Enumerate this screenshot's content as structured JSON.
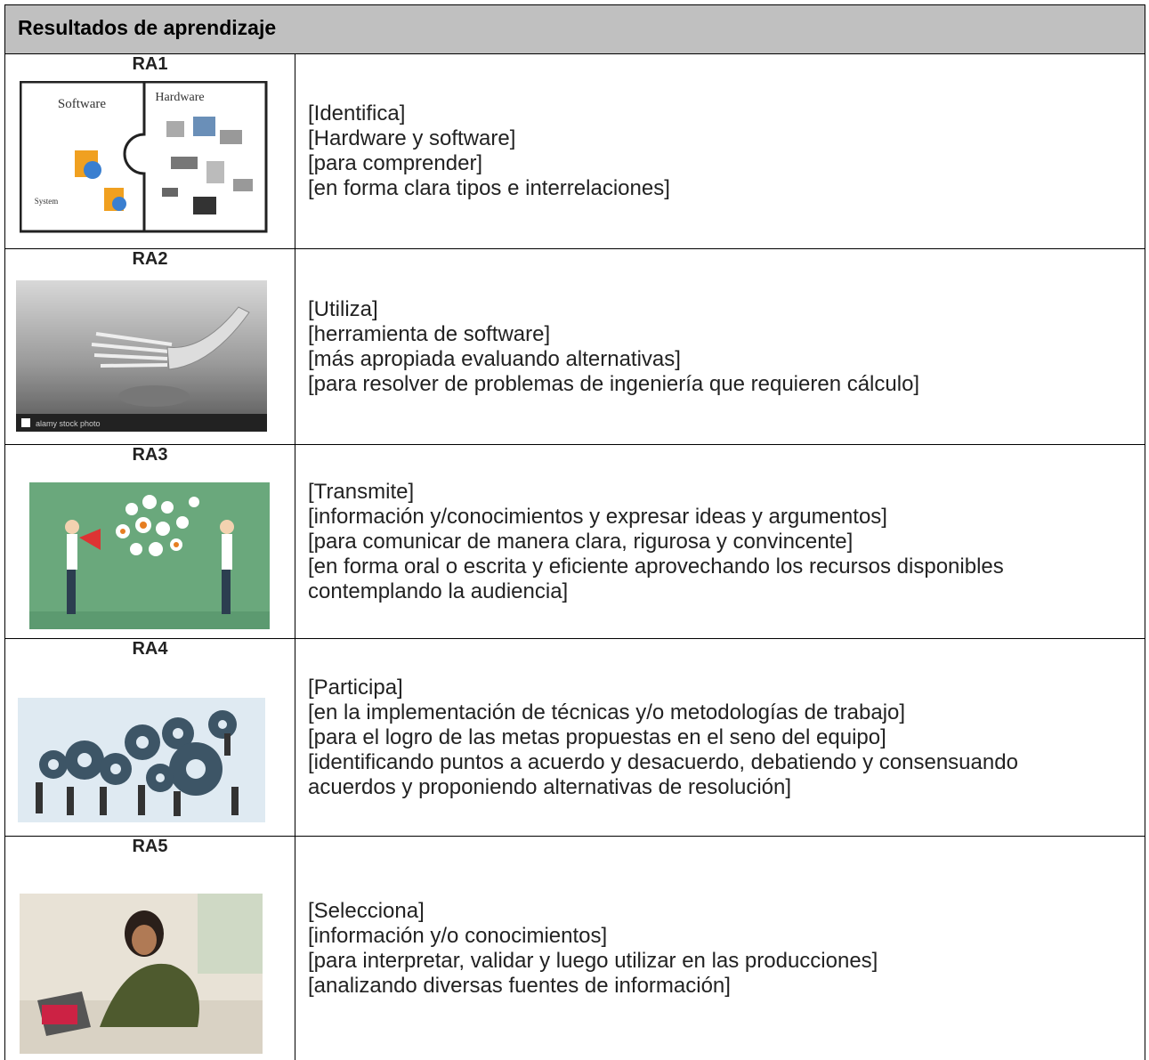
{
  "header": {
    "title": "Resultados de aprendizaje"
  },
  "rows": [
    {
      "label": "RA1",
      "image_texts": [
        "Software",
        "Hardware",
        "System"
      ],
      "lines": [
        "[Identifica]",
        "[Hardware y software]",
        "[para comprender]",
        "[en forma clara tipos e interrelaciones]"
      ]
    },
    {
      "label": "RA2",
      "image_texts": [
        "alamy stock photo"
      ],
      "lines": [
        "[Utiliza]",
        "[herramienta de software]",
        "[más apropiada evaluando alternativas]",
        "[para resolver de problemas de ingeniería que requieren cálculo]"
      ]
    },
    {
      "label": "RA3",
      "lines": [
        "[Transmite]",
        "[información y/conocimientos y expresar ideas y argumentos]",
        "[para comunicar de manera clara, rigurosa y convincente]",
        "[en forma oral o escrita y eficiente aprovechando los recursos disponibles contemplando la audiencia]"
      ]
    },
    {
      "label": "RA4",
      "lines": [
        "[Participa]",
        "[en la implementación de técnicas y/o metodologías de trabajo]",
        "[para el logro de las metas propuestas en el seno del equipo]",
        "[identificando puntos a acuerdo y desacuerdo, debatiendo y consensuando acuerdos y proponiendo alternativas de resolución]"
      ]
    },
    {
      "label": "RA5",
      "lines": [
        "[Selecciona]",
        "[información y/o conocimientos]",
        "[para interpretar, validar y luego utilizar en las producciones]",
        "[analizando diversas fuentes de información]"
      ]
    }
  ]
}
